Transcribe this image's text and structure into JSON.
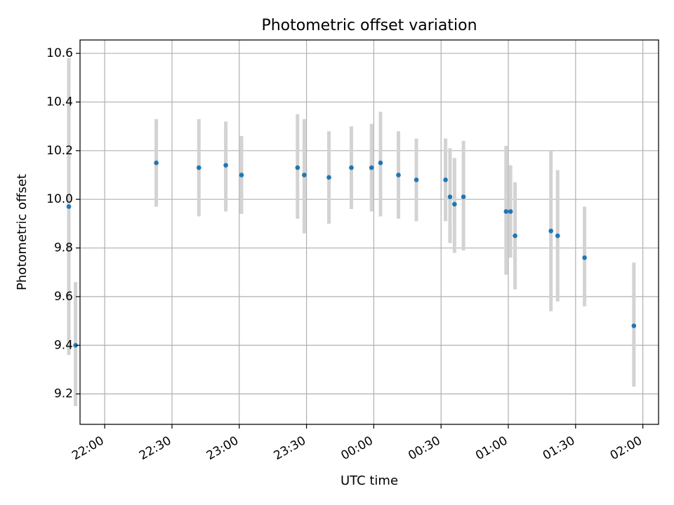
{
  "chart_data": {
    "type": "scatter",
    "title": "Photometric offset variation",
    "xlabel": "UTC time",
    "ylabel": "Photometric offset",
    "xlim": [
      "21:49",
      "02:07"
    ],
    "ylim": [
      9.075,
      10.655
    ],
    "grid": true,
    "x_tick_labels": [
      "22:00",
      "22:30",
      "23:00",
      "23:30",
      "00:00",
      "00:30",
      "01:00",
      "01:30",
      "02:00"
    ],
    "y_tick_labels": [
      "9.2",
      "9.4",
      "9.6",
      "9.8",
      "10.0",
      "10.2",
      "10.4",
      "10.6"
    ],
    "y_ticks": [
      9.2,
      9.4,
      9.6,
      9.8,
      10.0,
      10.2,
      10.4,
      10.6
    ],
    "series": [
      {
        "marker_color": "#1f77b4",
        "errorbar_color": "#d3d3d3",
        "points": [
          {
            "time": "21:44",
            "y": 9.97,
            "ylow": 9.36,
            "yhigh": 10.58
          },
          {
            "time": "21:47",
            "y": 9.4,
            "ylow": 9.15,
            "yhigh": 9.66
          },
          {
            "time": "22:23",
            "y": 10.15,
            "ylow": 9.97,
            "yhigh": 10.33
          },
          {
            "time": "22:42",
            "y": 10.13,
            "ylow": 9.93,
            "yhigh": 10.33
          },
          {
            "time": "22:54",
            "y": 10.14,
            "ylow": 9.95,
            "yhigh": 10.32
          },
          {
            "time": "23:01",
            "y": 10.1,
            "ylow": 9.94,
            "yhigh": 10.26
          },
          {
            "time": "23:26",
            "y": 10.13,
            "ylow": 9.92,
            "yhigh": 10.35
          },
          {
            "time": "23:29",
            "y": 10.1,
            "ylow": 9.86,
            "yhigh": 10.33
          },
          {
            "time": "23:40",
            "y": 10.09,
            "ylow": 9.9,
            "yhigh": 10.28
          },
          {
            "time": "23:50",
            "y": 10.13,
            "ylow": 9.96,
            "yhigh": 10.3
          },
          {
            "time": "23:59",
            "y": 10.13,
            "ylow": 9.95,
            "yhigh": 10.31
          },
          {
            "time": "00:03",
            "y": 10.15,
            "ylow": 9.93,
            "yhigh": 10.36
          },
          {
            "time": "00:11",
            "y": 10.1,
            "ylow": 9.92,
            "yhigh": 10.28
          },
          {
            "time": "00:19",
            "y": 10.08,
            "ylow": 9.91,
            "yhigh": 10.25
          },
          {
            "time": "00:32",
            "y": 10.08,
            "ylow": 9.91,
            "yhigh": 10.25
          },
          {
            "time": "00:34",
            "y": 10.01,
            "ylow": 9.82,
            "yhigh": 10.21
          },
          {
            "time": "00:36",
            "y": 9.98,
            "ylow": 9.78,
            "yhigh": 10.17
          },
          {
            "time": "00:40",
            "y": 10.01,
            "ylow": 9.79,
            "yhigh": 10.24
          },
          {
            "time": "00:59",
            "y": 9.95,
            "ylow": 9.69,
            "yhigh": 10.22
          },
          {
            "time": "01:01",
            "y": 9.95,
            "ylow": 9.76,
            "yhigh": 10.14
          },
          {
            "time": "01:03",
            "y": 9.85,
            "ylow": 9.63,
            "yhigh": 10.07
          },
          {
            "time": "01:19",
            "y": 9.87,
            "ylow": 9.54,
            "yhigh": 10.2
          },
          {
            "time": "01:22",
            "y": 9.85,
            "ylow": 9.58,
            "yhigh": 10.12
          },
          {
            "time": "01:34",
            "y": 9.76,
            "ylow": 9.56,
            "yhigh": 9.97
          },
          {
            "time": "01:56",
            "y": 9.48,
            "ylow": 9.23,
            "yhigh": 9.74
          }
        ]
      }
    ]
  }
}
